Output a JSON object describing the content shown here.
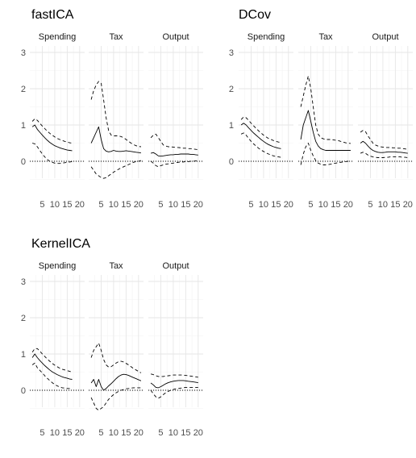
{
  "chart_data": [
    {
      "type": "line",
      "title": "fastICA",
      "panels": [
        "Spending",
        "Tax",
        "Output"
      ],
      "x_ticks": [
        "5",
        "10",
        "15",
        "20"
      ],
      "y_ticks": [
        "0",
        "1",
        "2",
        "3"
      ],
      "xlim": [
        0,
        22
      ],
      "ylim": [
        -0.55,
        3.2
      ],
      "reference_line": 0,
      "grid": true,
      "series": [
        {
          "style": "solid",
          "panel_values": [
            [
              0.95,
              1.0,
              0.88,
              0.8,
              0.72,
              0.65,
              0.58,
              0.52,
              0.47,
              0.43,
              0.4,
              0.37,
              0.35,
              0.33,
              0.31,
              0.3,
              0.29
            ],
            [
              0.5,
              0.65,
              0.8,
              0.95,
              0.6,
              0.35,
              0.28,
              0.26,
              0.27,
              0.3,
              0.28,
              0.27,
              0.27,
              0.28,
              0.29,
              0.28,
              0.27,
              0.26,
              0.25,
              0.24,
              0.23
            ],
            [
              0.22,
              0.24,
              0.2,
              0.15,
              0.14,
              0.15,
              0.16,
              0.17,
              0.18,
              0.18,
              0.19,
              0.19,
              0.2,
              0.2,
              0.2,
              0.2,
              0.19,
              0.19,
              0.18,
              0.17
            ]
          ]
        },
        {
          "style": "dashed",
          "panel_values": [
            [
              1.1,
              1.17,
              1.13,
              1.05,
              0.97,
              0.9,
              0.83,
              0.77,
              0.72,
              0.67,
              0.63,
              0.6,
              0.57,
              0.55,
              0.53,
              0.51,
              0.5
            ],
            [
              1.7,
              1.95,
              2.1,
              2.2,
              2.15,
              1.7,
              1.2,
              0.85,
              0.72,
              0.7,
              0.7,
              0.7,
              0.68,
              0.65,
              0.6,
              0.55,
              0.5,
              0.46,
              0.43,
              0.41,
              0.4
            ],
            [
              0.65,
              0.72,
              0.75,
              0.65,
              0.55,
              0.45,
              0.42,
              0.4,
              0.4,
              0.39,
              0.38,
              0.38,
              0.37,
              0.36,
              0.36,
              0.35,
              0.35,
              0.34,
              0.33,
              0.32
            ]
          ]
        },
        {
          "style": "dashed",
          "panel_values": [
            [
              0.5,
              0.48,
              0.4,
              0.3,
              0.2,
              0.12,
              0.05,
              0.0,
              -0.03,
              -0.05,
              -0.06,
              -0.06,
              -0.05,
              -0.04,
              -0.03,
              -0.02,
              -0.01
            ],
            [
              -0.15,
              -0.25,
              -0.35,
              -0.4,
              -0.45,
              -0.47,
              -0.45,
              -0.4,
              -0.35,
              -0.3,
              -0.26,
              -0.22,
              -0.18,
              -0.15,
              -0.12,
              -0.09,
              -0.06,
              -0.03,
              -0.01,
              0.0,
              0.02
            ],
            [
              0.0,
              -0.05,
              -0.12,
              -0.15,
              -0.12,
              -0.1,
              -0.08,
              -0.07,
              -0.06,
              -0.05,
              -0.04,
              -0.03,
              -0.02,
              -0.02,
              -0.01,
              -0.01,
              0.0,
              0.0,
              0.01,
              0.01
            ]
          ]
        }
      ]
    },
    {
      "type": "line",
      "title": "DCov",
      "panels": [
        "Spending",
        "Tax",
        "Output"
      ],
      "x_ticks": [
        "5",
        "10",
        "15",
        "20"
      ],
      "y_ticks": [
        "0",
        "1",
        "2",
        "3"
      ],
      "xlim": [
        0,
        22
      ],
      "ylim": [
        -0.55,
        3.2
      ],
      "reference_line": 0,
      "grid": true,
      "series": [
        {
          "style": "solid",
          "panel_values": [
            [
              1.0,
              1.05,
              1.0,
              0.92,
              0.85,
              0.78,
              0.72,
              0.66,
              0.6,
              0.55,
              0.5,
              0.46,
              0.43,
              0.4,
              0.38,
              0.36,
              0.35
            ],
            [
              0.6,
              1.0,
              1.2,
              1.4,
              1.1,
              0.8,
              0.55,
              0.42,
              0.35,
              0.32,
              0.3,
              0.3,
              0.3,
              0.3,
              0.3,
              0.3,
              0.3,
              0.3,
              0.3,
              0.3,
              0.3
            ],
            [
              0.5,
              0.55,
              0.5,
              0.42,
              0.35,
              0.3,
              0.27,
              0.25,
              0.24,
              0.24,
              0.25,
              0.26,
              0.26,
              0.26,
              0.26,
              0.25,
              0.25,
              0.24,
              0.23,
              0.22
            ]
          ]
        },
        {
          "style": "dashed",
          "panel_values": [
            [
              1.15,
              1.22,
              1.2,
              1.13,
              1.05,
              0.98,
              0.91,
              0.84,
              0.78,
              0.72,
              0.67,
              0.63,
              0.6,
              0.57,
              0.55,
              0.53,
              0.52
            ],
            [
              1.5,
              1.8,
              2.1,
              2.35,
              2.0,
              1.5,
              1.0,
              0.75,
              0.65,
              0.62,
              0.6,
              0.6,
              0.6,
              0.59,
              0.58,
              0.57,
              0.55,
              0.53,
              0.51,
              0.5,
              0.49
            ],
            [
              0.8,
              0.85,
              0.82,
              0.7,
              0.6,
              0.5,
              0.45,
              0.42,
              0.4,
              0.39,
              0.38,
              0.38,
              0.38,
              0.37,
              0.37,
              0.36,
              0.36,
              0.35,
              0.34,
              0.33
            ]
          ]
        },
        {
          "style": "dashed",
          "panel_values": [
            [
              0.75,
              0.78,
              0.72,
              0.63,
              0.55,
              0.48,
              0.42,
              0.36,
              0.31,
              0.27,
              0.23,
              0.2,
              0.17,
              0.15,
              0.13,
              0.12,
              0.11
            ],
            [
              -0.1,
              0.2,
              0.4,
              0.5,
              0.3,
              0.15,
              0.02,
              -0.05,
              -0.08,
              -0.1,
              -0.1,
              -0.09,
              -0.08,
              -0.06,
              -0.05,
              -0.04,
              -0.03,
              -0.02,
              -0.01,
              0.0,
              0.0
            ],
            [
              0.22,
              0.25,
              0.22,
              0.17,
              0.14,
              0.12,
              0.11,
              0.1,
              0.1,
              0.1,
              0.11,
              0.11,
              0.12,
              0.12,
              0.12,
              0.12,
              0.12,
              0.11,
              0.11,
              0.1
            ]
          ]
        }
      ]
    },
    {
      "type": "line",
      "title": "KernelICA",
      "panels": [
        "Spending",
        "Tax",
        "Output"
      ],
      "x_ticks": [
        "5",
        "10",
        "15",
        "20"
      ],
      "y_ticks": [
        "0",
        "1",
        "2",
        "3"
      ],
      "xlim": [
        0,
        22
      ],
      "ylim": [
        -0.55,
        3.2
      ],
      "reference_line": 0,
      "grid": true,
      "series": [
        {
          "style": "solid",
          "panel_values": [
            [
              0.9,
              1.0,
              0.9,
              0.82,
              0.75,
              0.68,
              0.62,
              0.56,
              0.51,
              0.47,
              0.43,
              0.4,
              0.37,
              0.35,
              0.33,
              0.31,
              0.3
            ],
            [
              0.2,
              0.3,
              0.1,
              0.3,
              0.1,
              0.0,
              0.05,
              0.12,
              0.18,
              0.25,
              0.32,
              0.38,
              0.42,
              0.44,
              0.43,
              0.41,
              0.38,
              0.35,
              0.32,
              0.29,
              0.26
            ],
            [
              0.2,
              0.15,
              0.08,
              0.07,
              0.1,
              0.14,
              0.18,
              0.21,
              0.23,
              0.25,
              0.26,
              0.27,
              0.27,
              0.27,
              0.26,
              0.25,
              0.24,
              0.23,
              0.22,
              0.21
            ]
          ]
        },
        {
          "style": "dashed",
          "panel_values": [
            [
              1.05,
              1.15,
              1.15,
              1.08,
              1.0,
              0.93,
              0.86,
              0.8,
              0.74,
              0.69,
              0.65,
              0.61,
              0.58,
              0.56,
              0.54,
              0.52,
              0.5
            ],
            [
              0.9,
              1.1,
              1.2,
              1.3,
              1.1,
              0.85,
              0.7,
              0.64,
              0.65,
              0.7,
              0.75,
              0.79,
              0.8,
              0.78,
              0.74,
              0.7,
              0.65,
              0.6,
              0.56,
              0.52,
              0.48
            ],
            [
              0.45,
              0.43,
              0.4,
              0.38,
              0.38,
              0.38,
              0.39,
              0.4,
              0.41,
              0.42,
              0.42,
              0.42,
              0.42,
              0.42,
              0.41,
              0.4,
              0.39,
              0.38,
              0.37,
              0.36
            ]
          ]
        },
        {
          "style": "dashed",
          "panel_values": [
            [
              0.7,
              0.75,
              0.62,
              0.55,
              0.48,
              0.4,
              0.33,
              0.27,
              0.21,
              0.16,
              0.12,
              0.09,
              0.07,
              0.06,
              0.05,
              0.05,
              0.05
            ],
            [
              -0.2,
              -0.35,
              -0.5,
              -0.55,
              -0.5,
              -0.45,
              -0.35,
              -0.25,
              -0.18,
              -0.12,
              -0.07,
              -0.03,
              0.0,
              0.02,
              0.04,
              0.05,
              0.06,
              0.07,
              0.07,
              0.07,
              0.07
            ],
            [
              0.0,
              -0.1,
              -0.18,
              -0.22,
              -0.18,
              -0.12,
              -0.07,
              -0.03,
              0.0,
              0.02,
              0.04,
              0.05,
              0.06,
              0.07,
              0.08,
              0.08,
              0.08,
              0.08,
              0.08,
              0.08
            ]
          ]
        }
      ]
    }
  ]
}
